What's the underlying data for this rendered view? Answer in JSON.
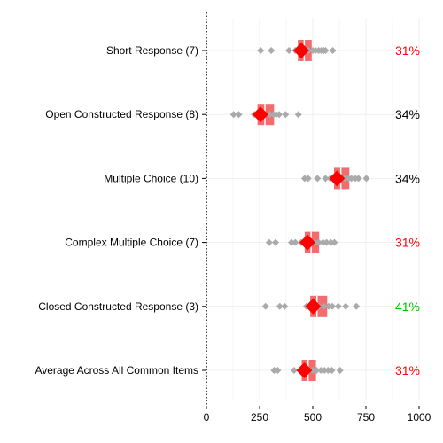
{
  "chart_data": {
    "type": "scatter",
    "title": "",
    "xlabel": "",
    "ylabel": "",
    "xlim": [
      0,
      1000
    ],
    "x_ticks": [
      0,
      250,
      500,
      750,
      1000
    ],
    "grid": true,
    "legend": "none",
    "colors": {
      "points": "#aaaaaa",
      "mean_marker": "#ff0000",
      "range_bar": "#f06464",
      "pct_red": "#ff0000",
      "pct_green": "#00c000",
      "pct_black": "#000000",
      "grid": "#ebebeb",
      "axis": "#000000"
    },
    "rows": [
      {
        "label": "Short Response (7)",
        "mean": 446,
        "band": [
          430,
          495
        ],
        "band_markers": [
          460
        ],
        "points": [
          255,
          305,
          388,
          418,
          438,
          458,
          480,
          500,
          513,
          528,
          540,
          552,
          560,
          594
        ],
        "pct": "31%",
        "pct_color": "#ff0000"
      },
      {
        "label": "Open Constructed Response (8)",
        "mean": 254,
        "band": [
          240,
          318
        ],
        "band_markers": [
          275
        ],
        "points": [
          128,
          152,
          225,
          245,
          275,
          298,
          315,
          328,
          342,
          372,
          432
        ],
        "pct": "34%",
        "pct_color": "#000000"
      },
      {
        "label": "Multiple Choice (10)",
        "mean": 614,
        "band": [
          600,
          672
        ],
        "band_markers": [
          632
        ],
        "points": [
          462,
          478,
          522,
          560,
          582,
          600,
          618,
          635,
          650,
          668,
          682,
          700,
          715,
          752
        ],
        "pct": "34%",
        "pct_color": "#000000"
      },
      {
        "label": "Complex Multiple Choice (7)",
        "mean": 475,
        "band": [
          462,
          530
        ],
        "band_markers": [
          492
        ],
        "points": [
          295,
          325,
          400,
          418,
          445,
          468,
          490,
          510,
          528,
          548,
          565,
          585,
          602
        ],
        "pct": "31%",
        "pct_color": "#ff0000"
      },
      {
        "label": "Closed Constructed Response (3)",
        "mean": 502,
        "band": [
          488,
          568
        ],
        "band_markers": [
          520
        ],
        "points": [
          278,
          345,
          368,
          470,
          492,
          512,
          530,
          552,
          575,
          592,
          620,
          655,
          705
        ],
        "pct": "41%",
        "pct_color": "#00c000"
      },
      {
        "label": "Average Across All Common Items",
        "mean": 460,
        "band": [
          448,
          515
        ],
        "band_markers": [
          478
        ],
        "points": [
          318,
          335,
          412,
          448,
          465,
          482,
          500,
          518,
          538,
          555,
          572,
          590,
          628
        ],
        "pct": "31%",
        "pct_color": "#ff0000"
      }
    ]
  }
}
